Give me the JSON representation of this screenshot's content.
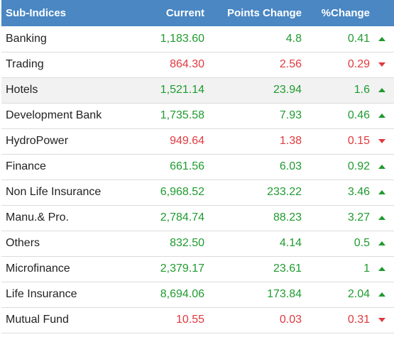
{
  "headers": {
    "name": "Sub-Indices",
    "current": "Current",
    "points_change": "Points Change",
    "pct_change": "%Change"
  },
  "colors": {
    "header_bg": "#4a87c3",
    "up": "#1f9b2f",
    "down": "#e0393e"
  },
  "rows": [
    {
      "name": "Banking",
      "current": "1,183.60",
      "points": "4.8",
      "pct": "0.41",
      "direction": "up",
      "icon": "triangle-up-icon"
    },
    {
      "name": "Trading",
      "current": "864.30",
      "points": "2.56",
      "pct": "0.29",
      "direction": "down",
      "icon": "triangle-down-icon"
    },
    {
      "name": "Hotels",
      "current": "1,521.14",
      "points": "23.94",
      "pct": "1.6",
      "direction": "up",
      "icon": "triangle-up-icon"
    },
    {
      "name": "Development Bank",
      "current": "1,735.58",
      "points": "7.93",
      "pct": "0.46",
      "direction": "up",
      "icon": "triangle-up-icon"
    },
    {
      "name": "HydroPower",
      "current": "949.64",
      "points": "1.38",
      "pct": "0.15",
      "direction": "down",
      "icon": "triangle-down-icon"
    },
    {
      "name": "Finance",
      "current": "661.56",
      "points": "6.03",
      "pct": "0.92",
      "direction": "up",
      "icon": "triangle-up-icon"
    },
    {
      "name": "Non Life Insurance",
      "current": "6,968.52",
      "points": "233.22",
      "pct": "3.46",
      "direction": "up",
      "icon": "triangle-up-icon"
    },
    {
      "name": "Manu.& Pro.",
      "current": "2,784.74",
      "points": "88.23",
      "pct": "3.27",
      "direction": "up",
      "icon": "triangle-up-icon"
    },
    {
      "name": "Others",
      "current": "832.50",
      "points": "4.14",
      "pct": "0.5",
      "direction": "up",
      "icon": "triangle-up-icon"
    },
    {
      "name": "Microfinance",
      "current": "2,379.17",
      "points": "23.61",
      "pct": "1",
      "direction": "up",
      "icon": "triangle-up-icon"
    },
    {
      "name": "Life Insurance",
      "current": "8,694.06",
      "points": "173.84",
      "pct": "2.04",
      "direction": "up",
      "icon": "triangle-up-icon"
    },
    {
      "name": "Mutual Fund",
      "current": "10.55",
      "points": "0.03",
      "pct": "0.31",
      "direction": "down",
      "icon": "triangle-down-icon"
    }
  ]
}
